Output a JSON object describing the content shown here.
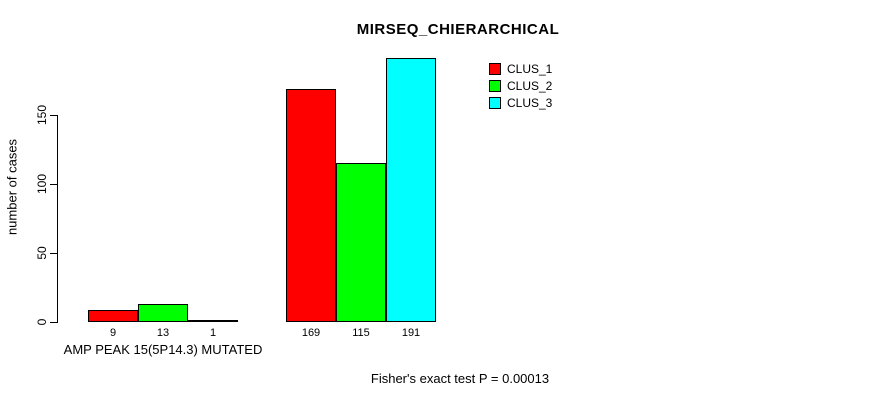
{
  "chart_data": {
    "type": "bar",
    "title": "MIRSEQ_CHIERARCHICAL",
    "ylabel": "number of cases",
    "xlabel": "",
    "yticks": [
      0,
      50,
      100,
      150
    ],
    "ylim": [
      0,
      191
    ],
    "grid": false,
    "legend_position": "top-right-inside",
    "series": [
      {
        "name": "CLUS_1",
        "color": "#ff0000"
      },
      {
        "name": "CLUS_2",
        "color": "#00ff00"
      },
      {
        "name": "CLUS_3",
        "color": "#00ffff"
      }
    ],
    "groups": [
      {
        "label": "AMP PEAK 15(5P14.3) MUTATED",
        "values": [
          9,
          13,
          1
        ]
      },
      {
        "label": "",
        "values": [
          169,
          115,
          191
        ]
      }
    ],
    "annotation": "Fisher's exact test P = 0.00013"
  }
}
